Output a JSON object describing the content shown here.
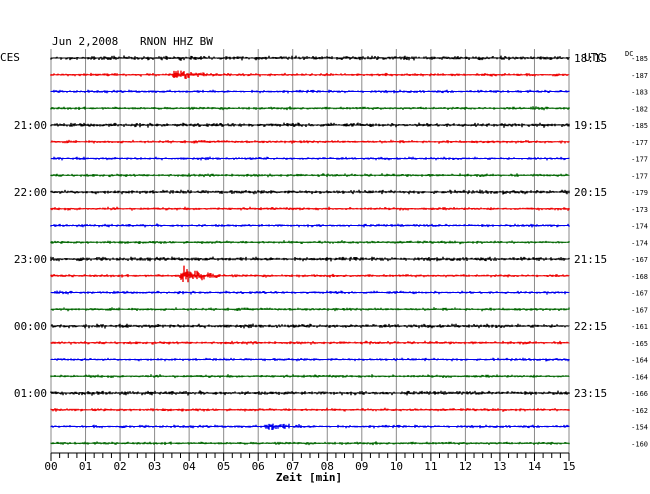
{
  "header": {
    "date": "Jun 2,2008",
    "station": "RNON HHZ BW",
    "left_label": "CES",
    "right_label": "UTC",
    "dc_label": "DC"
  },
  "chart_data": {
    "type": "line",
    "xlabel": "Zeit [min]",
    "xlim": [
      0,
      15
    ],
    "x_ticks": [
      "00",
      "01",
      "02",
      "03",
      "04",
      "05",
      "06",
      "07",
      "08",
      "09",
      "10",
      "11",
      "12",
      "13",
      "14",
      "15"
    ],
    "left_hour_labels": [
      {
        "trace": 4,
        "label": "21:00"
      },
      {
        "trace": 8,
        "label": "22:00"
      },
      {
        "trace": 12,
        "label": "23:00"
      },
      {
        "trace": 16,
        "label": "00:00"
      },
      {
        "trace": 20,
        "label": "01:00"
      }
    ],
    "right_hour_labels": [
      {
        "trace": 0,
        "label": "18:15"
      },
      {
        "trace": 4,
        "label": "19:15"
      },
      {
        "trace": 8,
        "label": "20:15"
      },
      {
        "trace": 12,
        "label": "21:15"
      },
      {
        "trace": 16,
        "label": "22:15"
      },
      {
        "trace": 20,
        "label": "23:15"
      }
    ],
    "series_colors": [
      "#000000",
      "#ee0000",
      "#0000ee",
      "#006600"
    ],
    "dc_values": [
      "-185",
      "-187",
      "-183",
      "-182",
      "-185",
      "-177",
      "-177",
      "-177",
      "-179",
      "-173",
      "-174",
      "-174",
      "-167",
      "-168",
      "-167",
      "-167",
      "-161",
      "-165",
      "-164",
      "-164",
      "-166",
      "-162",
      "-154",
      "-160"
    ],
    "events": [
      {
        "trace": 1,
        "minute": 3.6,
        "amplitude": 3
      },
      {
        "trace": 13,
        "minute": 3.85,
        "amplitude": 8
      },
      {
        "trace": 22,
        "minute": 6.3,
        "amplitude": 3
      }
    ]
  }
}
